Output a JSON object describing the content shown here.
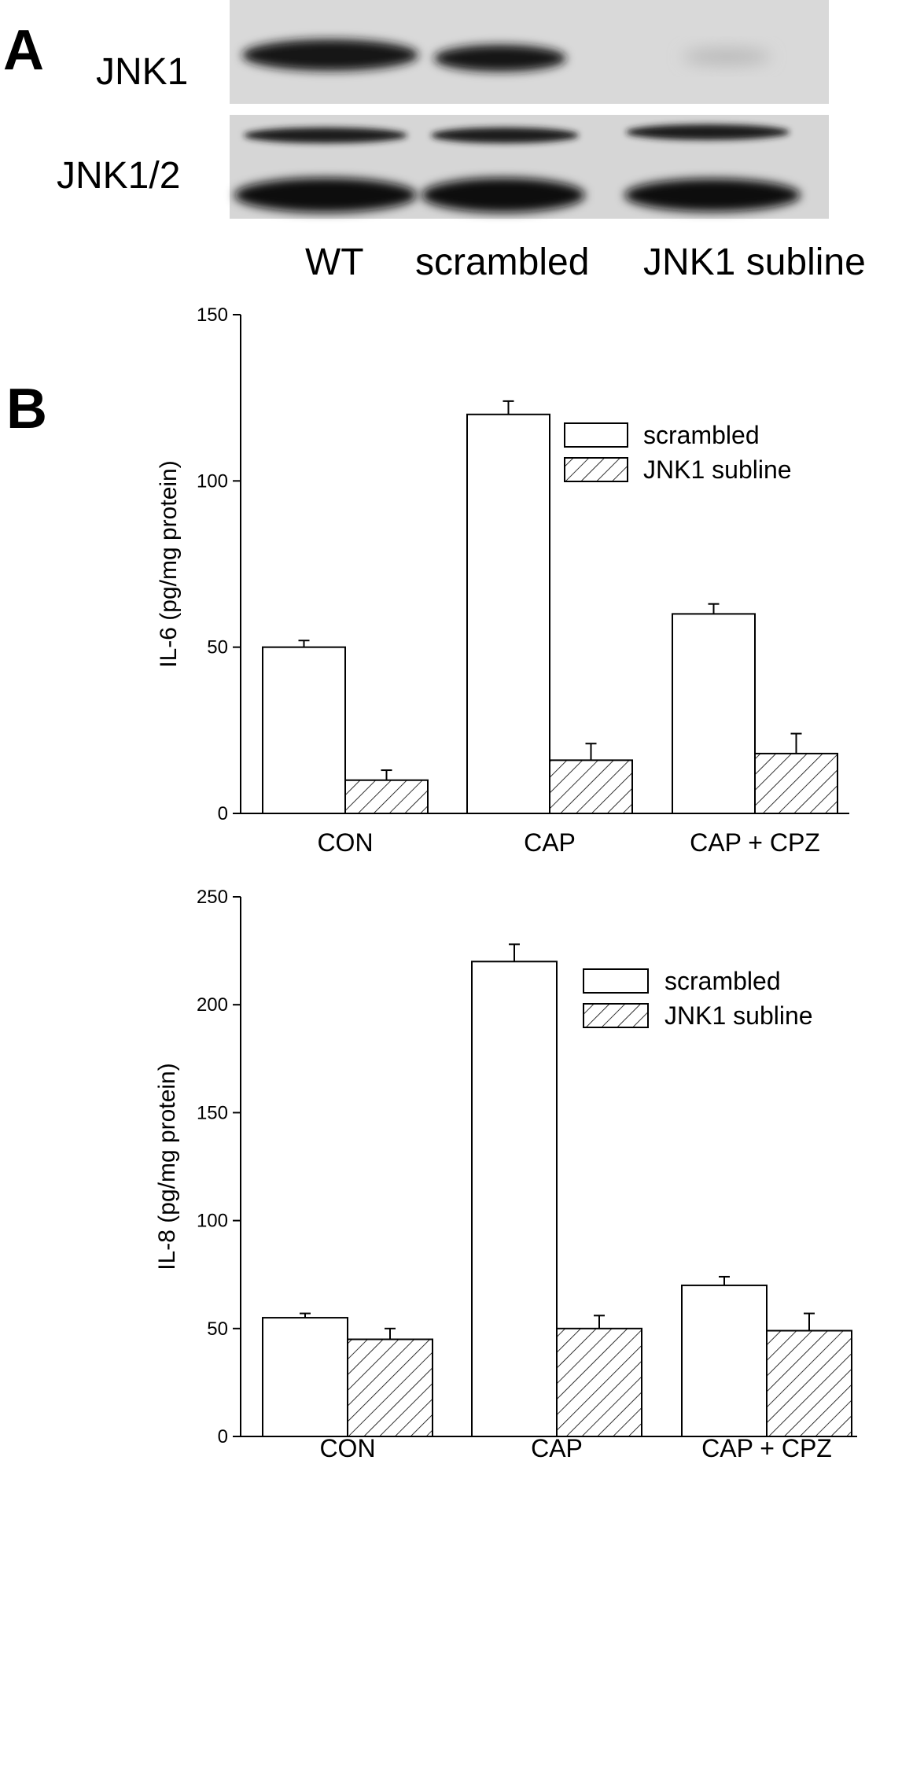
{
  "panel_a": {
    "letter": "A",
    "blot_rows": [
      "JNK1",
      "JNK1/2"
    ],
    "lanes": [
      "WT",
      "scrambled",
      "JNK1 subline"
    ]
  },
  "panel_b": {
    "letter": "B"
  },
  "chart_data": [
    {
      "type": "bar",
      "categories": [
        "CON",
        "CAP",
        "CAP + CPZ"
      ],
      "series": [
        {
          "name": "scrambled",
          "values": [
            50,
            120,
            60
          ],
          "errors": [
            2,
            4,
            3
          ],
          "fill": "open"
        },
        {
          "name": "JNK1 subline",
          "values": [
            10,
            16,
            18
          ],
          "errors": [
            3,
            5,
            6
          ],
          "fill": "hatched"
        }
      ],
      "xlabel": "",
      "ylabel": "IL-6 (pg/mg protein)",
      "ylim": [
        0,
        150
      ],
      "yticks": [
        0,
        50,
        100,
        150
      ],
      "grid": false,
      "legend": "top-right"
    },
    {
      "type": "bar",
      "categories": [
        "CON",
        "CAP",
        "CAP + CPZ"
      ],
      "series": [
        {
          "name": "scrambled",
          "values": [
            55,
            220,
            70
          ],
          "errors": [
            2,
            8,
            4
          ],
          "fill": "open"
        },
        {
          "name": "JNK1 subline",
          "values": [
            45,
            50,
            49
          ],
          "errors": [
            5,
            6,
            8
          ],
          "fill": "hatched"
        }
      ],
      "xlabel": "",
      "ylabel": "IL-8 (pg/mg protein)",
      "ylim": [
        0,
        250
      ],
      "yticks": [
        0,
        50,
        100,
        150,
        200,
        250
      ],
      "grid": false,
      "legend": "top-right"
    }
  ]
}
